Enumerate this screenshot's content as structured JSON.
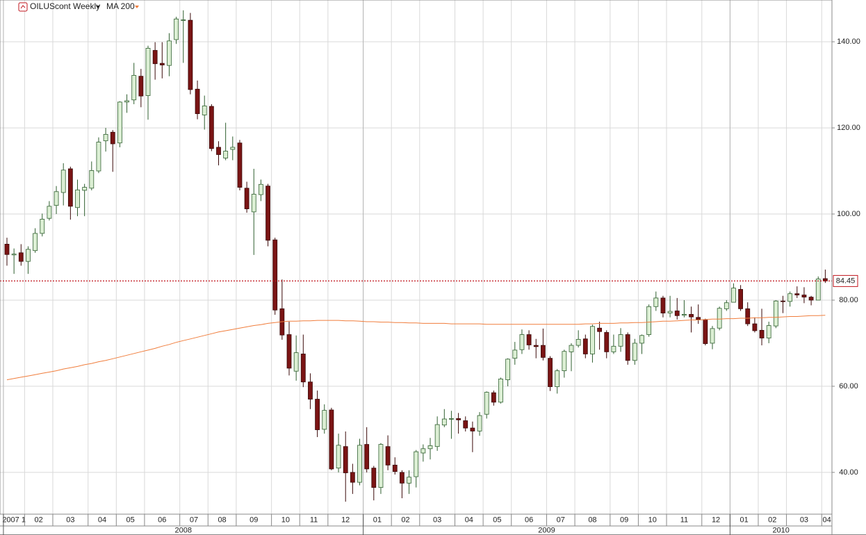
{
  "chart_data": {
    "type": "candlestick",
    "title": "OILUScont Weekly",
    "up_color": "#dcefd4",
    "up_stroke": "#2f5f2f",
    "down_color": "#7a1414",
    "down_stroke": "#3a0808",
    "open": [
      93.0,
      90.5,
      91.0,
      89.0,
      91.5,
      95.5,
      99.0,
      102.0,
      105.0,
      110.5,
      101.5,
      105.5,
      106.0,
      110.0,
      117.0,
      119.0,
      116.5,
      126.0,
      126.5,
      132.0,
      127.5,
      138.0,
      135.0,
      134.5,
      140.5,
      145.0,
      145.0,
      129.0,
      123.0,
      125.0,
      115.5,
      113.0,
      115.0,
      116.5,
      106.0,
      100.5,
      104.5,
      106.5,
      94.0,
      78.0,
      72.0,
      63.5,
      67.5,
      61.0,
      57.0,
      50.0,
      54.5,
      41.0,
      46.0,
      40.0,
      37.7,
      46.5,
      41.0,
      36.5,
      46.0,
      41.7,
      40.0,
      37.5,
      39.0,
      44.5,
      45.5,
      46.0,
      51.0,
      52.5,
      52.5,
      52.0,
      50.3,
      49.6,
      53.5,
      58.5,
      56.3,
      61.5,
      66.5,
      68.5,
      72.0,
      69.5,
      69.5,
      66.5,
      59.9,
      63.6,
      68.0,
      69.5,
      71.0,
      67.5,
      73.5,
      72.5,
      68.0,
      69.3,
      72.0,
      66.0,
      70.0,
      72.0,
      78.5,
      80.5,
      77.0,
      77.5,
      76.5,
      76.7,
      76.0,
      75.5,
      70.0,
      73.5,
      78.0,
      79.5,
      82.5,
      78.0,
      74.5,
      73.0,
      71.2,
      74.0,
      79.8,
      79.7,
      81.5,
      81.2,
      80.7,
      80.0,
      85.0
    ],
    "high": [
      94.5,
      92.0,
      93.0,
      92.5,
      96.7,
      100.1,
      103.0,
      106.5,
      111.8,
      111.0,
      108.0,
      107.0,
      112.2,
      117.8,
      120.0,
      119.5,
      126.2,
      127.8,
      135.1,
      133.7,
      139.1,
      139.9,
      139.9,
      142.0,
      145.8,
      147.3,
      146.7,
      131.0,
      127.5,
      125.5,
      116.9,
      121.2,
      118.0,
      117.2,
      107.5,
      110.5,
      108.0,
      107.0,
      94.5,
      84.8,
      75.0,
      71.8,
      72.0,
      63.0,
      59.0,
      55.8,
      55.0,
      49.0,
      49.5,
      42.0,
      47.8,
      50.5,
      41.5,
      46.8,
      48.6,
      43.5,
      40.5,
      40.5,
      45.2,
      46.5,
      48.0,
      53.0,
      54.7,
      54.3,
      53.8,
      53.0,
      51.8,
      54.0,
      58.8,
      59.0,
      62.0,
      66.5,
      70.3,
      73.2,
      73.0,
      71.0,
      73.4,
      67.0,
      64.0,
      68.5,
      70.0,
      73.0,
      72.0,
      74.3,
      75.0,
      73.0,
      72.0,
      73.5,
      72.5,
      71.0,
      72.0,
      79.0,
      82.0,
      81.0,
      81.0,
      80.5,
      80.0,
      78.5,
      79.0,
      75.7,
      74.0,
      78.5,
      80.0,
      83.9,
      83.5,
      79.5,
      76.0,
      78.0,
      75.0,
      80.0,
      81.0,
      82.0,
      83.2,
      83.0,
      81.0,
      85.5,
      87.1
    ],
    "low": [
      88.0,
      86.1,
      88.0,
      86.1,
      91.0,
      94.8,
      98.5,
      100.0,
      102.0,
      98.7,
      99.5,
      99.5,
      105.5,
      109.5,
      114.5,
      109.8,
      115.5,
      123.5,
      125.5,
      124.8,
      121.9,
      131.2,
      131.5,
      132.0,
      139.5,
      135.1,
      127.8,
      122.0,
      119.6,
      114.6,
      111.3,
      112.5,
      112.5,
      105.5,
      100.3,
      90.5,
      103.0,
      92.5,
      76.6,
      70.8,
      62.5,
      61.3,
      59.8,
      54.7,
      48.2,
      49.0,
      40.5,
      40.0,
      33.2,
      35.0,
      37.0,
      40.0,
      33.5,
      35.0,
      40.5,
      39.5,
      34.0,
      35.0,
      36.5,
      42.5,
      43.0,
      45.0,
      50.5,
      47.8,
      49.0,
      49.5,
      44.7,
      48.5,
      52.5,
      55.5,
      56.0,
      60.0,
      65.0,
      67.5,
      68.5,
      66.5,
      66.0,
      58.9,
      58.3,
      62.0,
      63.5,
      69.0,
      66.5,
      65.5,
      68.5,
      66.5,
      67.5,
      68.0,
      65.0,
      65.0,
      67.5,
      71.5,
      77.5,
      76.0,
      76.0,
      75.5,
      76.0,
      72.5,
      74.5,
      69.5,
      68.6,
      73.0,
      77.5,
      79.5,
      77.5,
      74.0,
      72.5,
      69.5,
      70.0,
      73.5,
      77.0,
      78.5,
      80.5,
      79.3,
      78.8,
      80.0,
      84.0
    ],
    "close": [
      90.6,
      90.7,
      89.0,
      91.8,
      95.5,
      98.8,
      101.8,
      105.2,
      110.2,
      101.8,
      105.6,
      106.2,
      110.1,
      116.7,
      118.5,
      116.3,
      126.0,
      126.3,
      132.2,
      127.4,
      138.5,
      134.9,
      134.6,
      140.2,
      145.3,
      145.1,
      128.9,
      123.3,
      125.1,
      115.2,
      113.8,
      114.6,
      115.5,
      106.2,
      101.2,
      104.6,
      106.9,
      93.9,
      77.7,
      71.9,
      64.2,
      67.8,
      61.0,
      57.0,
      49.9,
      54.4,
      40.8,
      46.3,
      39.9,
      37.7,
      46.3,
      40.8,
      36.5,
      46.5,
      41.7,
      40.2,
      37.5,
      38.9,
      44.8,
      45.5,
      46.2,
      51.1,
      52.4,
      52.5,
      52.2,
      50.3,
      49.6,
      53.2,
      58.6,
      56.3,
      61.7,
      66.3,
      68.4,
      72.0,
      69.6,
      69.2,
      66.7,
      59.9,
      63.6,
      68.1,
      69.5,
      70.9,
      67.5,
      73.9,
      72.7,
      68.0,
      69.3,
      72.0,
      66.0,
      70.0,
      71.8,
      78.5,
      80.5,
      77.0,
      77.4,
      76.4,
      76.7,
      76.1,
      75.5,
      69.9,
      73.4,
      78.1,
      79.4,
      82.8,
      78.0,
      74.5,
      72.9,
      71.2,
      74.1,
      79.8,
      79.7,
      81.5,
      81.2,
      80.7,
      80.0,
      84.9,
      84.45
    ],
    "series": [
      {
        "name": "MA 200",
        "color": "#f07d3c",
        "values": [
          61.5,
          61.8,
          62.1,
          62.4,
          62.7,
          63.0,
          63.3,
          63.6,
          64.0,
          64.3,
          64.6,
          65.0,
          65.3,
          65.7,
          66.0,
          66.4,
          66.8,
          67.2,
          67.6,
          68.0,
          68.4,
          68.8,
          69.3,
          69.7,
          70.2,
          70.6,
          71.0,
          71.4,
          71.8,
          72.2,
          72.6,
          72.9,
          73.2,
          73.5,
          73.8,
          74.1,
          74.3,
          74.6,
          74.8,
          75.0,
          75.1,
          75.1,
          75.2,
          75.2,
          75.3,
          75.3,
          75.3,
          75.3,
          75.2,
          75.2,
          75.1,
          75.0,
          75.0,
          74.9,
          74.9,
          74.8,
          74.8,
          74.7,
          74.7,
          74.6,
          74.6,
          74.6,
          74.6,
          74.5,
          74.5,
          74.5,
          74.5,
          74.5,
          74.4,
          74.4,
          74.4,
          74.4,
          74.4,
          74.4,
          74.4,
          74.4,
          74.4,
          74.4,
          74.4,
          74.4,
          74.4,
          74.4,
          74.5,
          74.5,
          74.6,
          74.6,
          74.6,
          74.7,
          74.7,
          74.8,
          74.8,
          74.9,
          75.0,
          75.1,
          75.1,
          75.2,
          75.3,
          75.4,
          75.4,
          75.5,
          75.6,
          75.6,
          75.7,
          75.7,
          75.8,
          75.8,
          75.9,
          75.9,
          76.0,
          76.0,
          76.1,
          76.2,
          76.2,
          76.3,
          76.4,
          76.4,
          76.5
        ]
      }
    ],
    "last_price": 84.45,
    "last_price_color": "#c0141c",
    "ylim": [
      30.3,
      149.7
    ],
    "yticks": [
      {
        "value": 40,
        "label": "40.00"
      },
      {
        "value": 60,
        "label": "60.00"
      },
      {
        "value": 80,
        "label": "80.00"
      },
      {
        "value": 100,
        "label": "100.00"
      },
      {
        "value": 120,
        "label": "120.00"
      },
      {
        "value": 140,
        "label": "140.00"
      }
    ],
    "xticks": [
      {
        "value": 0,
        "label": "2007 1"
      },
      {
        "value": 3,
        "label": "02"
      },
      {
        "value": 7,
        "label": "03"
      },
      {
        "value": 12,
        "label": "04"
      },
      {
        "value": 16,
        "label": "05"
      },
      {
        "value": 20,
        "label": "06"
      },
      {
        "value": 25,
        "label": "07"
      },
      {
        "value": 29,
        "label": "08"
      },
      {
        "value": 33,
        "label": "09"
      },
      {
        "value": 38,
        "label": "10"
      },
      {
        "value": 42,
        "label": "11"
      },
      {
        "value": 46,
        "label": "12"
      },
      {
        "value": 51,
        "label": "01"
      },
      {
        "value": 55,
        "label": "02"
      },
      {
        "value": 59,
        "label": "03"
      },
      {
        "value": 64,
        "label": "04"
      },
      {
        "value": 68,
        "label": "05"
      },
      {
        "value": 72,
        "label": "06"
      },
      {
        "value": 77,
        "label": "07"
      },
      {
        "value": 81,
        "label": "08"
      },
      {
        "value": 86,
        "label": "09"
      },
      {
        "value": 90,
        "label": "10"
      },
      {
        "value": 94,
        "label": "11"
      },
      {
        "value": 99,
        "label": "12"
      },
      {
        "value": 103,
        "label": "01"
      },
      {
        "value": 107,
        "label": "02"
      },
      {
        "value": 111,
        "label": "03"
      },
      {
        "value": 116,
        "label": "04"
      }
    ],
    "years": [
      {
        "value": 0,
        "label": "2008"
      },
      {
        "value": 51,
        "label": "2009"
      },
      {
        "value": 103,
        "label": "2010"
      }
    ],
    "grid": true
  }
}
